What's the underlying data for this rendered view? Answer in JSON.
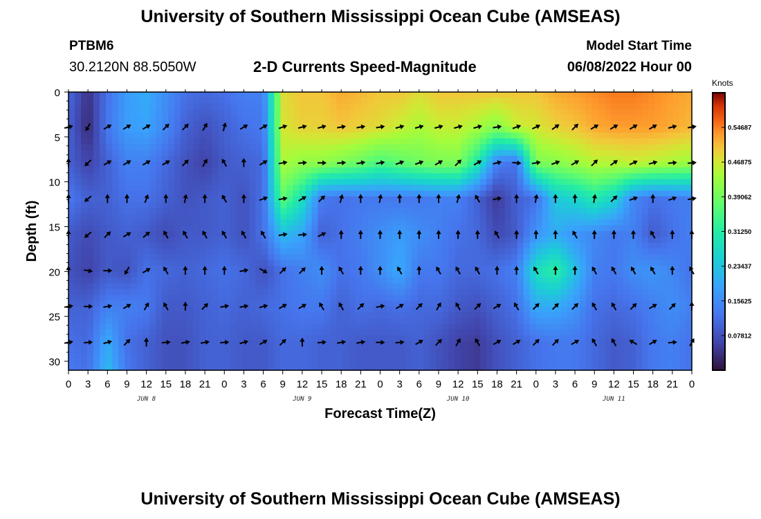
{
  "header": {
    "title": "University of Southern Mississippi Ocean Cube (AMSEAS)",
    "station": "PTBM6",
    "coordinates": "30.2120N  88.5050W",
    "subtitle": "2-D Currents Speed-Magnitude",
    "model_start_label": "Model Start Time",
    "model_start_value": "06/08/2022 Hour 00"
  },
  "footer": {
    "title": "University of Southern Mississippi Ocean Cube (AMSEAS)"
  },
  "chart_data": {
    "type": "heatmap",
    "title": "2-D Currents Speed-Magnitude",
    "xlabel": "Forecast Time(Z)",
    "ylabel": "Depth (ft)",
    "x_hours": [
      0,
      96
    ],
    "x_tick_labels": [
      "0",
      "3",
      "6",
      "9",
      "12",
      "15",
      "18",
      "21",
      "0",
      "3",
      "6",
      "9",
      "12",
      "15",
      "18",
      "21",
      "0",
      "3",
      "6",
      "9",
      "12",
      "15",
      "18",
      "21",
      "0",
      "3",
      "6",
      "9",
      "12",
      "15",
      "18",
      "21",
      "0"
    ],
    "day_labels": [
      {
        "label": "JUN 8",
        "hour": 12
      },
      {
        "label": "JUN 9",
        "hour": 36
      },
      {
        "label": "JUN 10",
        "hour": 60
      },
      {
        "label": "JUN 11",
        "hour": 84
      }
    ],
    "ylim": [
      0,
      31
    ],
    "y_ticks": [
      0,
      5,
      10,
      15,
      20,
      25,
      30
    ],
    "colorbar": {
      "unit": "Knots",
      "min": 0,
      "max": 0.625,
      "tick_values": [
        0.0781,
        0.1562,
        0.2344,
        0.3125,
        0.3906,
        0.4688,
        0.5469
      ],
      "tick_labels": [
        "0.07812",
        "0.15625",
        "0.23437",
        "0.31250",
        "0.39062",
        "0.46875",
        "0.54687"
      ]
    },
    "arrow_times": [
      0,
      3,
      6,
      9,
      12,
      15,
      18,
      21,
      24,
      27,
      30,
      33,
      36,
      39,
      42,
      45,
      48,
      51,
      54,
      57,
      60,
      63,
      66,
      69,
      72,
      75,
      78,
      81,
      84,
      87,
      90,
      93,
      96
    ],
    "depth_levels": [
      3.9,
      7.9,
      11.9,
      15.9,
      19.9,
      23.9,
      27.9
    ],
    "speed_hours": [
      0,
      3,
      6,
      9,
      12,
      15,
      18,
      21,
      24,
      27,
      30,
      33,
      36,
      39,
      42,
      45,
      48,
      51,
      54,
      57,
      60,
      63,
      66,
      69,
      72,
      75,
      78,
      81,
      84,
      87,
      90,
      93,
      96
    ],
    "speed_depths": [
      0,
      3.9,
      7.9,
      11.9,
      15.9,
      19.9,
      23.9,
      27.9,
      31
    ],
    "speed_knots": [
      [
        0.11,
        0.04,
        0.12,
        0.18,
        0.2,
        0.16,
        0.12,
        0.11,
        0.12,
        0.14,
        0.14,
        0.48,
        0.5,
        0.5,
        0.52,
        0.51,
        0.5,
        0.5,
        0.48,
        0.5,
        0.5,
        0.5,
        0.5,
        0.5,
        0.5,
        0.52,
        0.53,
        0.54,
        0.55,
        0.55,
        0.54,
        0.53,
        0.52
      ],
      [
        0.1,
        0.03,
        0.13,
        0.18,
        0.19,
        0.15,
        0.1,
        0.08,
        0.1,
        0.12,
        0.13,
        0.47,
        0.49,
        0.49,
        0.5,
        0.49,
        0.48,
        0.46,
        0.44,
        0.46,
        0.46,
        0.44,
        0.41,
        0.46,
        0.47,
        0.49,
        0.5,
        0.52,
        0.53,
        0.53,
        0.53,
        0.52,
        0.51
      ],
      [
        0.1,
        0.06,
        0.1,
        0.14,
        0.14,
        0.11,
        0.08,
        0.06,
        0.09,
        0.1,
        0.11,
        0.44,
        0.42,
        0.42,
        0.4,
        0.38,
        0.35,
        0.37,
        0.39,
        0.4,
        0.4,
        0.3,
        0.14,
        0.12,
        0.4,
        0.41,
        0.43,
        0.45,
        0.45,
        0.46,
        0.45,
        0.44,
        0.43
      ],
      [
        0.13,
        0.1,
        0.1,
        0.12,
        0.12,
        0.1,
        0.08,
        0.09,
        0.1,
        0.08,
        0.12,
        0.37,
        0.28,
        0.13,
        0.12,
        0.13,
        0.13,
        0.13,
        0.13,
        0.14,
        0.14,
        0.1,
        0.05,
        0.1,
        0.12,
        0.24,
        0.26,
        0.3,
        0.26,
        0.15,
        0.12,
        0.13,
        0.14
      ],
      [
        0.09,
        0.07,
        0.09,
        0.1,
        0.09,
        0.07,
        0.09,
        0.09,
        0.1,
        0.08,
        0.12,
        0.22,
        0.19,
        0.1,
        0.12,
        0.14,
        0.16,
        0.18,
        0.16,
        0.14,
        0.12,
        0.11,
        0.07,
        0.09,
        0.17,
        0.2,
        0.17,
        0.15,
        0.13,
        0.14,
        0.09,
        0.12,
        0.14
      ],
      [
        0.08,
        0.06,
        0.09,
        0.08,
        0.12,
        0.11,
        0.1,
        0.11,
        0.12,
        0.11,
        0.08,
        0.12,
        0.14,
        0.16,
        0.12,
        0.13,
        0.16,
        0.2,
        0.13,
        0.13,
        0.11,
        0.11,
        0.12,
        0.14,
        0.28,
        0.32,
        0.23,
        0.14,
        0.13,
        0.16,
        0.17,
        0.15,
        0.12
      ],
      [
        0.1,
        0.1,
        0.14,
        0.14,
        0.13,
        0.09,
        0.09,
        0.1,
        0.11,
        0.1,
        0.11,
        0.12,
        0.13,
        0.13,
        0.1,
        0.12,
        0.11,
        0.12,
        0.11,
        0.11,
        0.09,
        0.08,
        0.1,
        0.12,
        0.2,
        0.2,
        0.17,
        0.12,
        0.11,
        0.12,
        0.14,
        0.16,
        0.14
      ],
      [
        0.12,
        0.11,
        0.2,
        0.12,
        0.1,
        0.08,
        0.08,
        0.1,
        0.1,
        0.09,
        0.09,
        0.11,
        0.11,
        0.1,
        0.1,
        0.09,
        0.09,
        0.09,
        0.1,
        0.08,
        0.06,
        0.05,
        0.08,
        0.1,
        0.12,
        0.13,
        0.13,
        0.11,
        0.09,
        0.1,
        0.13,
        0.14,
        0.12
      ],
      [
        0.13,
        0.12,
        0.22,
        0.13,
        0.1,
        0.08,
        0.08,
        0.1,
        0.1,
        0.09,
        0.09,
        0.11,
        0.11,
        0.1,
        0.1,
        0.09,
        0.09,
        0.09,
        0.1,
        0.08,
        0.06,
        0.05,
        0.08,
        0.1,
        0.12,
        0.13,
        0.13,
        0.11,
        0.09,
        0.1,
        0.13,
        0.14,
        0.12
      ]
    ],
    "arrow_directions_deg": [
      [
        75,
        210,
        60,
        60,
        60,
        45,
        45,
        30,
        15,
        60,
        60,
        70,
        75,
        75,
        80,
        80,
        80,
        75,
        75,
        75,
        75,
        75,
        80,
        70,
        65,
        55,
        45,
        60,
        60,
        60,
        60,
        75,
        80
      ],
      [
        0,
        225,
        60,
        60,
        60,
        60,
        45,
        30,
        330,
        0,
        60,
        80,
        85,
        90,
        85,
        80,
        80,
        70,
        70,
        60,
        45,
        60,
        75,
        95,
        80,
        70,
        60,
        45,
        55,
        65,
        75,
        85,
        85
      ],
      [
        0,
        230,
        0,
        0,
        20,
        0,
        10,
        0,
        330,
        0,
        70,
        80,
        60,
        45,
        15,
        0,
        10,
        0,
        0,
        0,
        15,
        330,
        80,
        0,
        10,
        0,
        0,
        10,
        45,
        70,
        0,
        70,
        80
      ],
      [
        0,
        230,
        45,
        60,
        50,
        330,
        330,
        330,
        330,
        330,
        330,
        80,
        85,
        65,
        0,
        0,
        0,
        0,
        0,
        0,
        0,
        0,
        330,
        0,
        0,
        0,
        330,
        0,
        0,
        0,
        330,
        0,
        0
      ],
      [
        0,
        100,
        90,
        210,
        60,
        330,
        0,
        0,
        0,
        80,
        120,
        45,
        45,
        0,
        330,
        0,
        0,
        330,
        0,
        330,
        330,
        330,
        0,
        0,
        330,
        0,
        0,
        330,
        330,
        330,
        330,
        0,
        330
      ],
      [
        80,
        90,
        80,
        60,
        30,
        330,
        0,
        45,
        80,
        80,
        75,
        60,
        60,
        330,
        330,
        45,
        80,
        60,
        45,
        30,
        330,
        45,
        60,
        330,
        45,
        45,
        45,
        330,
        330,
        45,
        60,
        45,
        0
      ],
      [
        80,
        85,
        75,
        45,
        0,
        85,
        80,
        80,
        85,
        75,
        60,
        45,
        0,
        85,
        80,
        80,
        90,
        85,
        60,
        45,
        30,
        330,
        60,
        60,
        45,
        45,
        60,
        330,
        330,
        300,
        60,
        85,
        30
      ]
    ]
  }
}
